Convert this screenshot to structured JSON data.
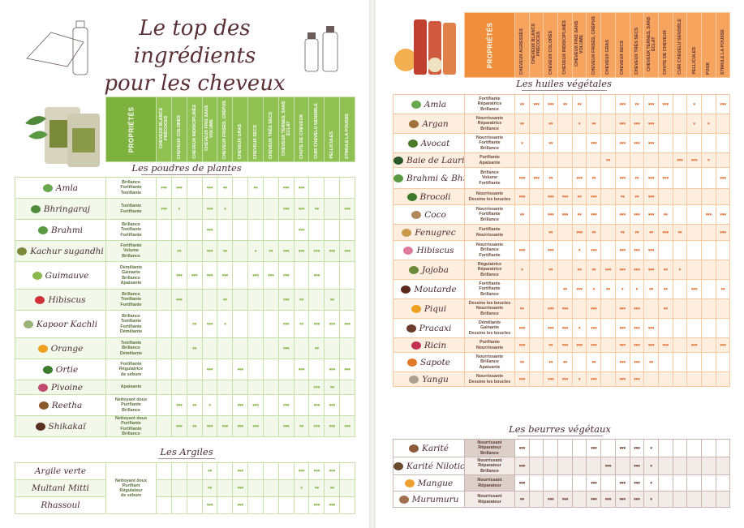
{
  "title_line1": "Le top des ingrédients",
  "title_line2": "pour les cheveux",
  "properties_label": "PROPRIÉTÉS",
  "left_columns": [
    "CHEVEUX BLANCS PRÉCOCES",
    "CHEVEUX COLORÉS",
    "CHEVEUX INDISCIPLINÉS",
    "CHEVEUX FINS SANS VOLUME",
    "CHEVEUX FRISÉS, CRÉPUS",
    "CHEVEUX GRAS",
    "CHEVEUX SECS",
    "CHEVEUX TRÈS SECS",
    "CHEVEUX TERNES, SANS ÉCLAT",
    "CHUTE DE CHEVEUX",
    "CUIR CHEVELU SENSIBLE",
    "PELLICULES",
    "STIMULE LA POUSSE"
  ],
  "right_columns": [
    "CHEVEUX AGRESSÉS",
    "CHEVEUX BLANCS PRÉCOCES",
    "CHEVEUX COLORÉS",
    "CHEVEUX INDISCIPLINÉS",
    "CHEVEUX FINS SANS VOLUME",
    "CHEVEUX FRISÉS, CRÉPUS",
    "CHEVEUX GRAS",
    "CHEVEUX SECS",
    "CHEVEUX TRÈS SECS",
    "CHEVEUX TERNES, SANS ÉCLAT",
    "CHUTE DE CHEVEUX",
    "CUIR CHEVELU SENSIBLE",
    "PELLICULES",
    "POUX",
    "STIMULE LA POUSSE"
  ],
  "sections": {
    "poudres": "Les poudres de plantes",
    "argiles": "Les Argiles",
    "huiles": "Les huiles végétales",
    "beurres": "Les beurres végétaux"
  },
  "poudres": [
    {
      "name": "Amla",
      "icon": "#6aa84f",
      "props": [
        "Brillance",
        "Fortifiante",
        "Tonifiante"
      ],
      "marks": [
        "♥♥♥",
        "♥♥♥",
        "",
        "♥♥♥",
        "♥♥",
        "",
        "♥♥",
        "",
        "♥♥♥",
        "♥♥♥",
        "",
        "",
        ""
      ]
    },
    {
      "name": "Bhringaraj",
      "icon": "#4f8a3a",
      "props": [
        "Tonifiante",
        "Fortifiante"
      ],
      "marks": [
        "♥♥♥",
        "♥",
        "",
        "♥♥♥",
        "♥",
        "",
        "",
        "",
        "♥♥♥",
        "♥♥♥",
        "♥♥",
        "",
        "♥♥♥"
      ]
    },
    {
      "name": "Brahmi",
      "icon": "#5a9a43",
      "props": [
        "Brillance",
        "Tonifiante",
        "Fortifiante"
      ],
      "marks": [
        "",
        "",
        "",
        "♥♥♥",
        "",
        "",
        "",
        "",
        "",
        "♥♥♥",
        "",
        "",
        ""
      ]
    },
    {
      "name": "Kachur sugandhi",
      "icon": "#7a8a3a",
      "props": [
        "Fortifiante",
        "Volume",
        "Brillance"
      ],
      "marks": [
        "",
        "♥♥",
        "",
        "♥♥♥",
        "♥♥",
        "",
        "♥",
        "♥♥",
        "♥♥♥",
        "♥♥♥",
        "♥♥♥",
        "♥♥♥",
        "♥♥♥"
      ]
    },
    {
      "name": "Guimauve",
      "icon": "#8ab84a",
      "props": [
        "Démêlante",
        "Gainante",
        "Brillance",
        "Apaisante"
      ],
      "marks": [
        "",
        "♥♥♥",
        "♥♥♥",
        "♥♥♥",
        "♥♥♥",
        "",
        "♥♥♥",
        "♥♥♥",
        "♥♥♥",
        "",
        "♥♥♥",
        "",
        ""
      ]
    },
    {
      "name": "Hibiscus",
      "icon": "#d0303a",
      "props": [
        "Brillance",
        "Tonifiante",
        "Fortifiante"
      ],
      "marks": [
        "",
        "♥♥♥",
        "",
        "",
        "♥♥",
        "",
        "",
        "",
        "♥♥♥",
        "♥♥",
        "",
        "♥♥",
        ""
      ]
    },
    {
      "name": "Kapoor Kachli",
      "icon": "#9ab37a",
      "props": [
        "Brillance",
        "Tonifiante",
        "Fortifiante",
        "Démêlante"
      ],
      "marks": [
        "",
        "",
        "♥♥",
        "♥♥♥",
        "♥",
        "",
        "",
        "",
        "♥♥♥",
        "♥♥",
        "♥♥♥",
        "♥♥♥",
        "♥♥♥"
      ]
    },
    {
      "name": "Orange",
      "icon": "#f0a020",
      "props": [
        "Tonifiante",
        "Brillance",
        "Démêlante"
      ],
      "marks": [
        "",
        "",
        "♥♥",
        "",
        "",
        "",
        "",
        "",
        "♥♥♥",
        "",
        "♥♥",
        "",
        ""
      ]
    },
    {
      "name": "Ortie",
      "icon": "#3d7a2a",
      "props": [
        "Fortifiante",
        "Régulatrice",
        "de sébum"
      ],
      "marks": [
        "",
        "",
        "",
        "♥♥♥",
        "",
        "♥♥♥",
        "",
        "",
        "",
        "♥♥♥",
        "",
        "♥♥♥",
        "♥♥♥"
      ]
    },
    {
      "name": "Pivoine",
      "icon": "#c04a70",
      "props": [
        "Apaisante"
      ],
      "marks": [
        "",
        "",
        "",
        "",
        "",
        "",
        "",
        "",
        "",
        "",
        "♥♥♥",
        "♥♥",
        ""
      ]
    },
    {
      "name": "Reetha",
      "icon": "#8a5a2a",
      "props": [
        "Nettoyant doux",
        "Purifiante",
        "Brillance"
      ],
      "marks": [
        "",
        "♥♥♥",
        "♥♥",
        "♥",
        "",
        "♥♥♥",
        "♥♥♥",
        "",
        "♥♥♥",
        "",
        "♥♥♥",
        "♥♥♥",
        ""
      ]
    },
    {
      "name": "Shikakaï",
      "icon": "#5a3020",
      "props": [
        "Nettoyant doux",
        "Purifiante",
        "Fortifiante",
        "Brillance"
      ],
      "marks": [
        "",
        "♥♥♥",
        "♥♥",
        "♥♥♥",
        "♥♥♥",
        "♥♥♥",
        "♥♥♥",
        "",
        "♥♥♥",
        "♥♥",
        "♥♥♥",
        "♥♥♥",
        "♥♥♥"
      ]
    }
  ],
  "argiles_props": [
    "Nettoyant doux",
    "Purifiant",
    "Régulateur",
    "de sébum"
  ],
  "argiles": [
    {
      "name": "Argile verte",
      "marks": [
        "",
        "",
        "",
        "♥♥",
        "",
        "♥♥♥",
        "",
        "",
        "",
        "♥♥♥",
        "♥♥♥",
        "♥♥♥",
        ""
      ]
    },
    {
      "name": "Multani Mitti",
      "marks": [
        "",
        "",
        "",
        "♥♥",
        "",
        "♥♥♥",
        "",
        "",
        "",
        "♥",
        "♥♥",
        "♥♥",
        ""
      ]
    },
    {
      "name": "Rhassoul",
      "marks": [
        "",
        "",
        "",
        "♥♥♥",
        "",
        "♥♥♥",
        "",
        "",
        "",
        "",
        "♥♥♥",
        "♥♥♥",
        ""
      ]
    }
  ],
  "huiles": [
    {
      "name": "Amla",
      "icon": "#6aa84f",
      "props": [
        "Fortifiante",
        "Réparatrice",
        "Brillance"
      ],
      "marks": [
        "♥♥",
        "♥♥♥",
        "♥♥♥",
        "♥♥",
        "♥♥",
        "",
        "",
        "♥♥♥",
        "♥♥",
        "♥♥♥",
        "♥♥♥",
        "",
        "♥",
        "",
        "♥♥♥"
      ]
    },
    {
      "name": "Argan",
      "icon": "#a0703a",
      "props": [
        "Nourrissante",
        "Réparatrice",
        "Brillance"
      ],
      "marks": [
        "♥♥",
        "",
        "♥♥",
        "",
        "♥",
        "♥♥",
        "",
        "♥♥♥",
        "♥♥♥",
        "♥♥♥",
        "",
        "",
        "♥",
        "♥",
        ""
      ]
    },
    {
      "name": "Avocat",
      "icon": "#4a7a2a",
      "props": [
        "Nourrissante",
        "Fortifiante",
        "Brillance"
      ],
      "marks": [
        "♥",
        "",
        "♥♥",
        "",
        "",
        "♥♥♥",
        "",
        "♥♥♥",
        "♥♥♥",
        "♥♥♥",
        "",
        "",
        "",
        "",
        ""
      ]
    },
    {
      "name": "Baie de Laurier",
      "icon": "#2a5a2a",
      "props": [
        "Purifiante",
        "Apaisante"
      ],
      "marks": [
        "",
        "",
        "",
        "",
        "",
        "",
        "♥♥",
        "",
        "",
        "",
        "",
        "♥♥♥",
        "♥♥♥",
        "♥",
        ""
      ]
    },
    {
      "name": "Brahmi & Bhringaraj",
      "icon": "#5a9a43",
      "props": [
        "Brillance",
        "Volume",
        "Fortifiante"
      ],
      "marks": [
        "♥♥♥",
        "♥♥♥",
        "♥♥",
        "",
        "♥♥♥",
        "♥♥",
        "",
        "♥♥♥",
        "♥♥",
        "♥♥♥",
        "♥♥♥",
        "",
        "",
        "",
        "♥♥♥"
      ]
    },
    {
      "name": "Brocoli",
      "icon": "#3d7a2a",
      "props": [
        "Nourrissante",
        "Dessine les boucles"
      ],
      "marks": [
        "♥♥♥",
        "",
        "♥♥♥",
        "♥♥♥",
        "♥♥",
        "♥♥♥",
        "",
        "♥♥",
        "♥♥",
        "♥♥♥",
        "",
        "",
        "",
        "",
        ""
      ]
    },
    {
      "name": "Coco",
      "icon": "#b08a5a",
      "props": [
        "Nourrissante",
        "Fortifiante",
        "Brillance"
      ],
      "marks": [
        "♥♥",
        "",
        "♥♥♥",
        "♥♥♥",
        "♥♥",
        "♥♥♥",
        "",
        "♥♥♥",
        "♥♥♥",
        "♥♥♥",
        "♥♥",
        "",
        "",
        "♥♥♥",
        "♥♥♥"
      ]
    },
    {
      "name": "Fenugrec",
      "icon": "#c89a4a",
      "props": [
        "Fortifiante",
        "Nourrissante"
      ],
      "marks": [
        "",
        "",
        "♥♥",
        "",
        "♥♥♥",
        "♥♥",
        "",
        "♥♥",
        "♥♥",
        "♥♥",
        "♥♥♥",
        "♥♥",
        "",
        "",
        "♥♥♥"
      ]
    },
    {
      "name": "Hibiscus",
      "icon": "#e07a9a",
      "props": [
        "Nourrissante",
        "Brillance",
        "Fortifiante"
      ],
      "marks": [
        "♥♥♥",
        "",
        "♥♥♥",
        "",
        "♥",
        "♥♥♥",
        "",
        "♥♥♥",
        "♥♥♥",
        "♥♥♥",
        "",
        "",
        "",
        "",
        ""
      ]
    },
    {
      "name": "Jojoba",
      "icon": "#6a8a3a",
      "props": [
        "Régulatrice",
        "Réparatrice",
        "Brillance"
      ],
      "marks": [
        "♥",
        "",
        "♥♥",
        "",
        "♥♥",
        "♥♥",
        "♥♥♥",
        "♥♥♥",
        "♥♥♥",
        "♥♥♥",
        "♥♥",
        "♥",
        "",
        "",
        ""
      ]
    },
    {
      "name": "Moutarde",
      "icon": "#5a2a1a",
      "props": [
        "Fortifiante",
        "Fortifiante",
        "Brillance"
      ],
      "marks": [
        "",
        "",
        "",
        "♥♥",
        "♥♥♥",
        "♥",
        "♥♥",
        "♥",
        "♥",
        "♥♥",
        "♥♥",
        "",
        "♥♥♥",
        "",
        "♥♥"
      ]
    },
    {
      "name": "Piqui",
      "icon": "#f0a020",
      "props": [
        "Dessine les boucles",
        "Nourrissante",
        "Brillance"
      ],
      "marks": [
        "♥♥",
        "",
        "♥♥♥",
        "♥♥♥",
        "",
        "♥♥♥",
        "",
        "♥♥♥",
        "♥♥♥",
        "",
        "♥♥",
        "",
        "",
        "",
        ""
      ]
    },
    {
      "name": "Pracaxi",
      "icon": "#6a3a2a",
      "props": [
        "Démêlante",
        "Gainante",
        "Dessine les boucles"
      ],
      "marks": [
        "♥♥♥",
        "",
        "♥♥♥",
        "♥♥♥",
        "♥",
        "♥♥♥",
        "",
        "♥♥♥",
        "♥♥♥",
        "♥♥♥",
        "",
        "",
        "",
        "",
        ""
      ]
    },
    {
      "name": "Ricin",
      "icon": "#c03050",
      "props": [
        "Purifiante",
        "Nourrissante"
      ],
      "marks": [
        "♥♥♥",
        "",
        "♥♥",
        "♥♥♥",
        "♥♥♥",
        "♥♥♥",
        "",
        "♥♥♥",
        "♥♥♥",
        "♥♥♥",
        "♥♥♥",
        "",
        "♥♥♥",
        "",
        "♥♥♥"
      ]
    },
    {
      "name": "Sapote",
      "icon": "#e07a2a",
      "props": [
        "Nourrissante",
        "Brillance",
        "Apaisante"
      ],
      "marks": [
        "♥♥",
        "",
        "♥♥",
        "♥♥",
        "",
        "♥♥",
        "",
        "♥♥♥",
        "♥♥♥",
        "♥♥",
        "",
        "",
        "",
        "",
        ""
      ]
    },
    {
      "name": "Yangu",
      "icon": "#b0a090",
      "props": [
        "Nourrissante",
        "Dessine les boucles"
      ],
      "marks": [
        "♥♥♥",
        "",
        "♥♥♥",
        "♥♥♥",
        "♥",
        "♥♥♥",
        "",
        "♥♥♥",
        "♥♥♥",
        "",
        "",
        "",
        "",
        "",
        ""
      ]
    }
  ],
  "beurres": [
    {
      "name": "Karité",
      "icon": "#8a5a3a",
      "props": [
        "Nourrissant",
        "Réparateur",
        "Brillance"
      ],
      "marks": [
        "♥♥♥",
        "",
        "",
        "",
        "",
        "♥♥♥",
        "",
        "♥♥♥",
        "♥♥♥",
        "♥",
        "",
        "",
        "",
        "",
        ""
      ]
    },
    {
      "name": "Karité Nilotica",
      "icon": "#6a4a2a",
      "props": [
        "Nourrissant",
        "Réparateur",
        "Brillance"
      ],
      "marks": [
        "♥♥♥",
        "",
        "",
        "",
        "",
        "",
        "♥♥♥",
        "",
        "♥♥♥",
        "♥",
        "",
        "",
        "",
        "",
        ""
      ]
    },
    {
      "name": "Mangue",
      "icon": "#f0a030",
      "props": [
        "Nourrissant",
        "Réparateur"
      ],
      "marks": [
        "♥♥♥",
        "",
        "",
        "",
        "",
        "♥♥♥",
        "",
        "♥♥♥",
        "♥♥♥",
        "♥",
        "",
        "",
        "",
        "",
        ""
      ]
    },
    {
      "name": "Murumuru",
      "icon": "#a07050",
      "props": [
        "Nourrissant",
        "Réparateur"
      ],
      "marks": [
        "♥♥",
        "",
        "♥♥♥",
        "♥♥♥",
        "",
        "♥♥♥",
        "♥♥♥",
        "♥♥♥",
        "♥♥♥",
        "♥",
        "",
        "",
        "",
        "",
        ""
      ]
    }
  ]
}
